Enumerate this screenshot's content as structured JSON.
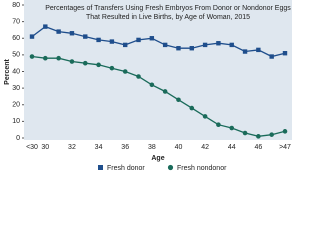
{
  "chart_data": {
    "type": "line",
    "title": [
      "Percentages of Transfers Using Fresh Embryos From Donor or Nondonor Eggs",
      "That Resulted in Live Births, by Age of Woman, 2015"
    ],
    "x_label": "Age",
    "y_label": "Percent",
    "categories": [
      "<30",
      "30",
      null,
      "32",
      null,
      "34",
      null,
      "36",
      null,
      "38",
      null,
      "40",
      null,
      "42",
      null,
      "44",
      null,
      "46",
      null,
      ">47"
    ],
    "series": [
      {
        "name": "Fresh donor",
        "color": "#1f4e8c",
        "marker": "square",
        "values": [
          61,
          67,
          64,
          63,
          61,
          59,
          58,
          56,
          59,
          60,
          56,
          54,
          54,
          56,
          57,
          56,
          52,
          53,
          49,
          51
        ]
      },
      {
        "name": "Fresh nondonor",
        "color": "#1a6b5a",
        "marker": "circle",
        "values": [
          49,
          48,
          48,
          46,
          45,
          44,
          42,
          40,
          37,
          32,
          28,
          23,
          18,
          13,
          8,
          6,
          3,
          1,
          2,
          4
        ]
      }
    ],
    "ylim": [
      0,
      80
    ],
    "yticks": [
      0,
      10,
      20,
      30,
      40,
      50,
      60,
      70,
      80
    ],
    "grid": false
  }
}
